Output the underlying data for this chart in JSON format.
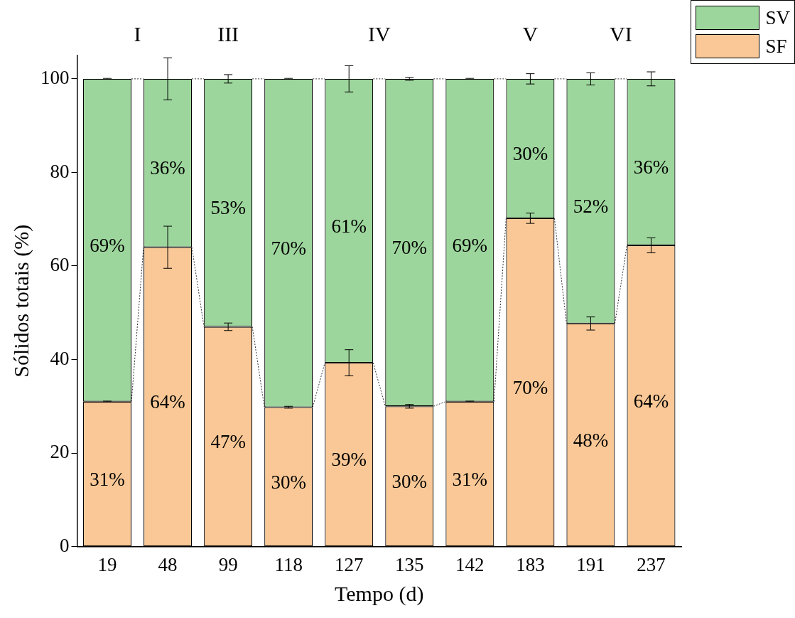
{
  "chart_data": {
    "type": "bar",
    "stacked": true,
    "xlabel": "Tempo (d)",
    "ylabel": "Sólidos totais (%)",
    "categories": [
      "19",
      "48",
      "99",
      "118",
      "127",
      "135",
      "142",
      "183",
      "191",
      "237"
    ],
    "series": [
      {
        "name": "SF",
        "color": "#f9c896",
        "values": [
          31,
          64,
          47,
          29.8,
          39.3,
          30,
          31,
          70.2,
          47.7,
          64.4
        ],
        "errors": [
          0.1,
          4.5,
          0.8,
          0.2,
          2.8,
          0.4,
          0.1,
          1.1,
          1.4,
          1.6
        ],
        "value_labels": [
          "31%",
          "64%",
          "47%",
          "30%",
          "39%",
          "30%",
          "31%",
          "70%",
          "48%",
          "64%"
        ]
      },
      {
        "name": "SV",
        "color": "#9dd69c",
        "values": [
          69,
          36,
          53,
          70.2,
          60.7,
          70,
          69,
          29.8,
          52.3,
          35.6
        ],
        "errors": [
          0.1,
          4.5,
          0.9,
          0.1,
          2.8,
          0.3,
          0.1,
          1.1,
          1.3,
          1.5
        ],
        "value_labels": [
          "69%",
          "36%",
          "53%",
          "70%",
          "61%",
          "70%",
          "69%",
          "30%",
          "52%",
          "36%"
        ]
      }
    ],
    "ylim": [
      0,
      105
    ],
    "yticks": [
      0,
      20,
      40,
      60,
      80,
      100
    ],
    "grid": false,
    "legend": "top right",
    "annotations": [
      "I",
      "III",
      "IV",
      "V",
      "VI"
    ]
  }
}
